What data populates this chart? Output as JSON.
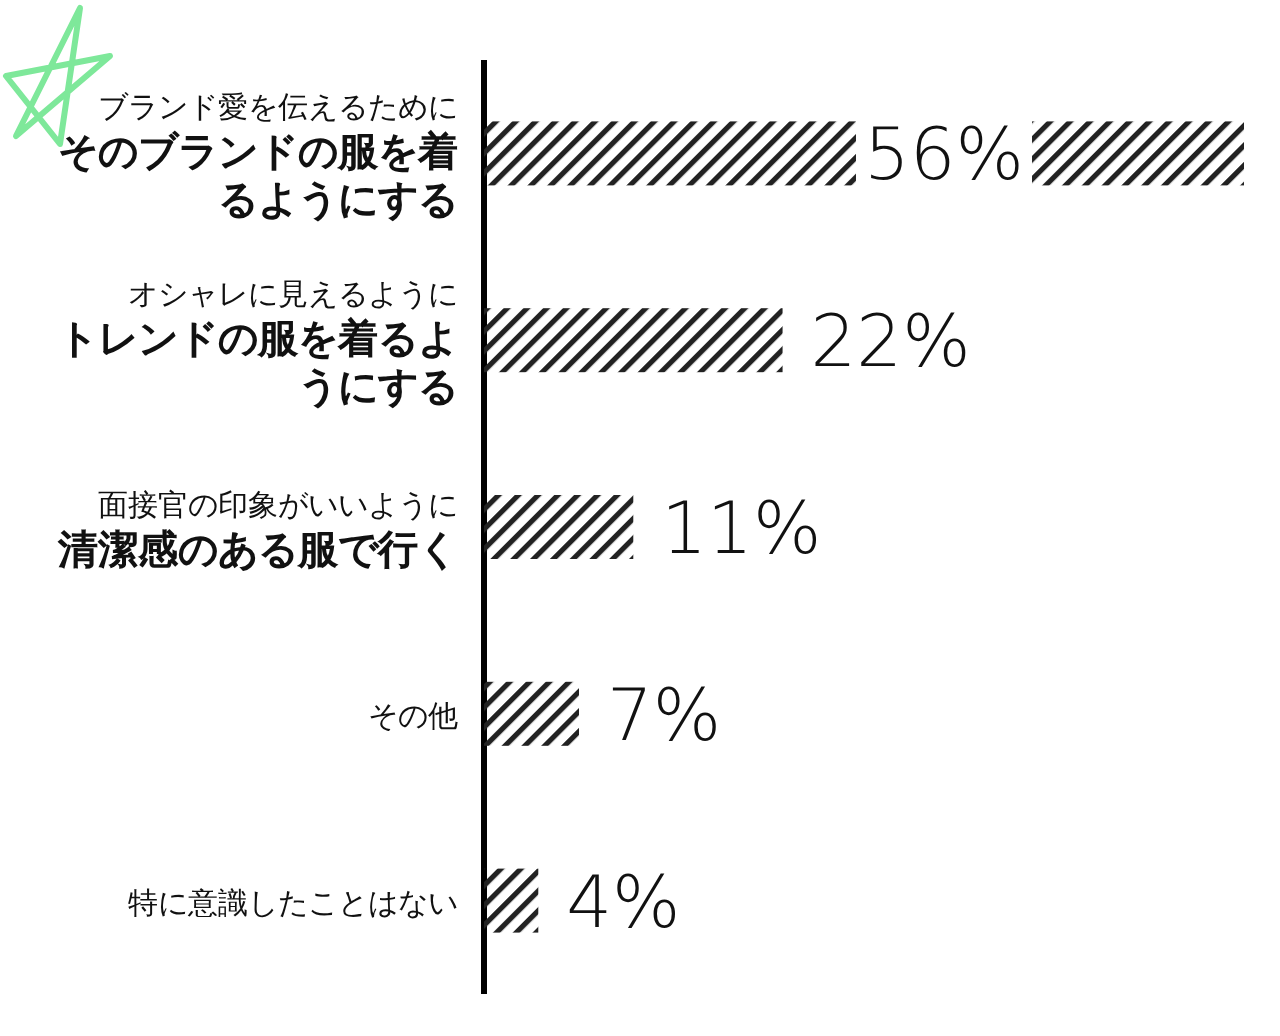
{
  "chart_data": {
    "type": "bar",
    "orientation": "horizontal",
    "color": "#222222",
    "categories": [
      "ブランド愛を伝えるために**そのブランドの服を着るようにする**",
      "オシャレに見えるように**トレンドの服を着るようにする**",
      "面接官の印象がいいように**清潔感のある服で行く**",
      "その他",
      "特に意識したことはない"
    ],
    "values": [
      56,
      22,
      11,
      7,
      4
    ],
    "value_labels": [
      "56%",
      "22%",
      "11%",
      "7%",
      "4%"
    ]
  }
}
